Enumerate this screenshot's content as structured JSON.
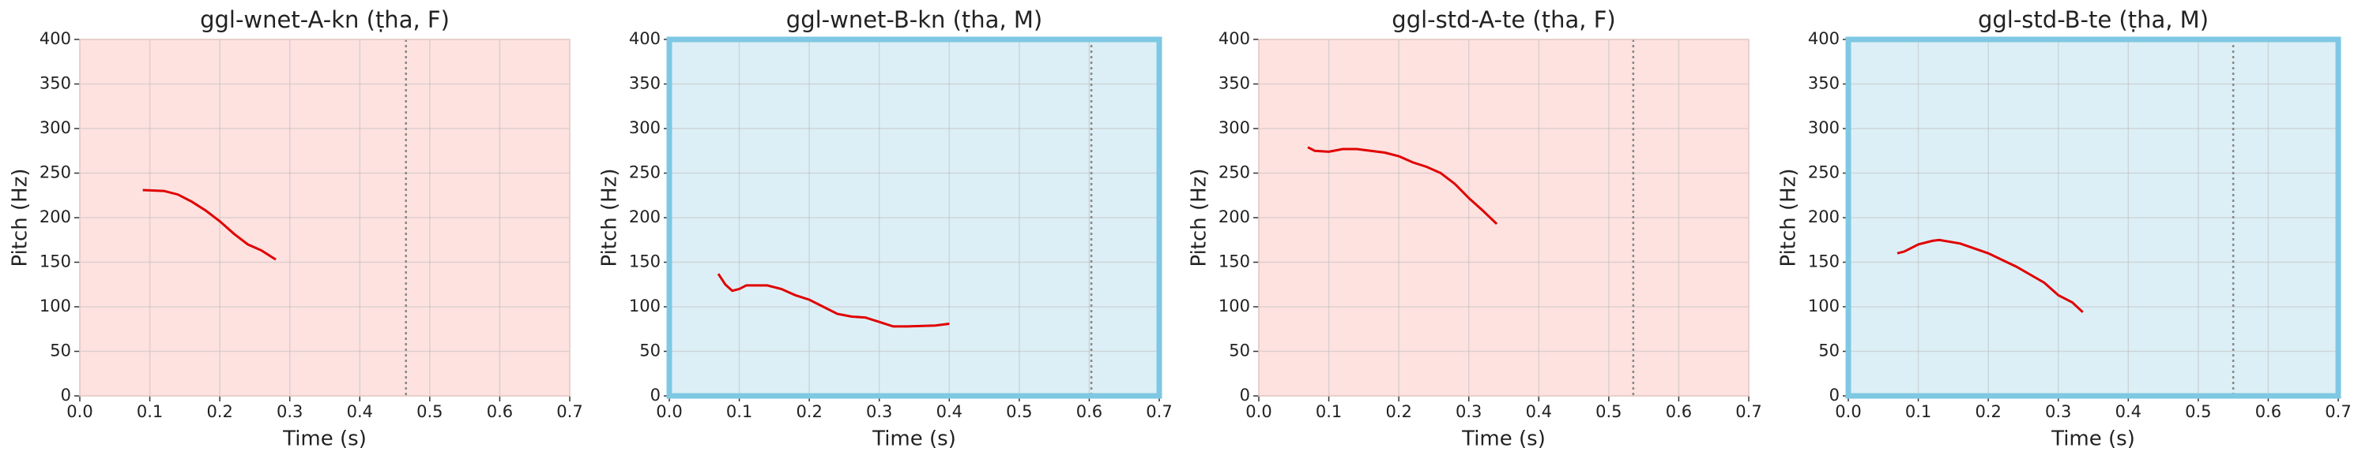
{
  "chart_data": [
    {
      "type": "line",
      "title": "ggl-wnet-A-kn (ṭha, F)",
      "x_label": "Time (s)",
      "y_label": "Pitch (Hz)",
      "x": [
        0.09,
        0.12,
        0.14,
        0.16,
        0.18,
        0.2,
        0.22,
        0.24,
        0.26,
        0.28
      ],
      "values": [
        231,
        230,
        226,
        218,
        208,
        196,
        182,
        170,
        163,
        153
      ],
      "color": "#e00000",
      "vline": 0.466,
      "background": "#fde2e0",
      "border": "#e8c8c6",
      "xlim": [
        0,
        0.7
      ],
      "ylim": [
        0,
        400
      ],
      "xticks": [
        {
          "value": 0,
          "label": "0.0"
        },
        0.1,
        0.2,
        0.3,
        0.4,
        0.5,
        0.6,
        0.7
      ],
      "yticks": [
        0,
        50,
        100,
        150,
        200,
        250,
        300,
        350,
        400
      ],
      "grid": true
    },
    {
      "type": "line",
      "title": "ggl-wnet-B-kn (ṭha, M)",
      "x_label": "Time (s)",
      "y_label": "Pitch (Hz)",
      "x": [
        0.07,
        0.08,
        0.09,
        0.1,
        0.11,
        0.14,
        0.16,
        0.18,
        0.2,
        0.22,
        0.24,
        0.26,
        0.28,
        0.3,
        0.32,
        0.34,
        0.38,
        0.4
      ],
      "values": [
        137,
        125,
        118,
        120,
        124,
        124,
        120,
        113,
        108,
        100,
        92,
        89,
        88,
        83,
        78,
        78,
        79,
        81
      ],
      "color": "#e00000",
      "vline": 0.603,
      "background": "#ddeff6",
      "border": "#7ec8e3",
      "xlim": [
        0,
        0.7
      ],
      "ylim": [
        0,
        400
      ],
      "xticks": [
        {
          "value": 0,
          "label": "0.0"
        },
        0.1,
        0.2,
        0.3,
        0.4,
        0.5,
        0.6,
        0.7
      ],
      "yticks": [
        0,
        50,
        100,
        150,
        200,
        250,
        300,
        350,
        400
      ],
      "grid": true
    },
    {
      "type": "line",
      "title": "ggl-std-A-te (ṭha, F)",
      "x_label": "Time (s)",
      "y_label": "Pitch (Hz)",
      "x": [
        0.07,
        0.08,
        0.1,
        0.12,
        0.14,
        0.18,
        0.2,
        0.22,
        0.24,
        0.26,
        0.28,
        0.3,
        0.32,
        0.34
      ],
      "values": [
        279,
        275,
        274,
        277,
        277,
        273,
        269,
        262,
        257,
        250,
        238,
        222,
        208,
        193
      ],
      "color": "#e00000",
      "vline": 0.535,
      "background": "#fde2e0",
      "border": "#e8c8c6",
      "xlim": [
        0,
        0.7
      ],
      "ylim": [
        0,
        400
      ],
      "xticks": [
        {
          "value": 0,
          "label": "0.0"
        },
        0.1,
        0.2,
        0.3,
        0.4,
        0.5,
        0.6,
        0.7
      ],
      "yticks": [
        0,
        50,
        100,
        150,
        200,
        250,
        300,
        350,
        400
      ],
      "grid": true
    },
    {
      "type": "line",
      "title": "ggl-std-B-te (ṭha, M)",
      "x_label": "Time (s)",
      "y_label": "Pitch (Hz)",
      "x": [
        0.07,
        0.08,
        0.1,
        0.12,
        0.13,
        0.16,
        0.2,
        0.24,
        0.28,
        0.3,
        0.32,
        0.335
      ],
      "values": [
        160,
        162,
        170,
        174,
        175,
        171,
        160,
        145,
        127,
        113,
        105,
        94
      ],
      "color": "#e00000",
      "vline": 0.55,
      "background": "#ddeff6",
      "border": "#7ec8e3",
      "xlim": [
        0,
        0.7
      ],
      "ylim": [
        0,
        400
      ],
      "xticks": [
        {
          "value": 0,
          "label": "0.0"
        },
        0.1,
        0.2,
        0.3,
        0.4,
        0.5,
        0.6,
        0.7
      ],
      "yticks": [
        0,
        50,
        100,
        150,
        200,
        250,
        300,
        350,
        400
      ],
      "grid": true
    }
  ]
}
